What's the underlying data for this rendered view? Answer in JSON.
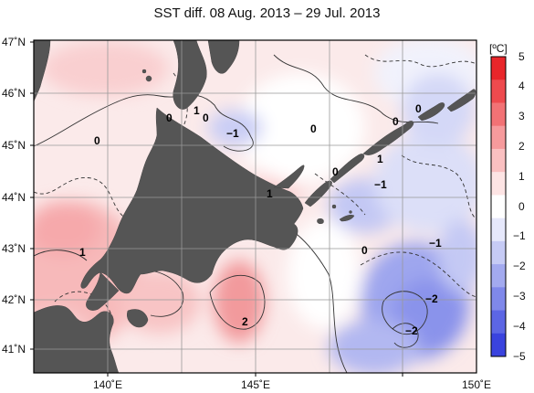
{
  "title": "SST diff. 08 Aug. 2013 – 29 Jul. 2013",
  "lat_labels": [
    "47˚N",
    "46˚N",
    "45˚N",
    "44˚N",
    "43˚N",
    "42˚N",
    "41˚N"
  ],
  "lon_labels": [
    "140˚E",
    "145˚E",
    "150˚E"
  ],
  "colorbar": {
    "unit": "[ºC]",
    "ticks": [
      "5",
      "4",
      "3",
      "2",
      "1",
      "0",
      "−1",
      "−2",
      "−3",
      "−4",
      "−5"
    ],
    "colors": [
      "#e8262a",
      "#ee4a4e",
      "#f27275",
      "#f69a9c",
      "#fac0c1",
      "#fde4e4",
      "#ffffff",
      "#e6e8fb",
      "#c6cbf5",
      "#a3aaef",
      "#7f88ea",
      "#5c66e4",
      "#3a43de"
    ]
  },
  "contour_labels": [
    "0",
    "1",
    "0",
    "−1",
    "0",
    "0",
    "0",
    "0",
    "0",
    "1",
    "−1",
    "1",
    "−1",
    "0",
    "1",
    "−2",
    "−2",
    "2"
  ],
  "colors": {
    "land": "#555555",
    "frame": "#000000",
    "grid": "#999999"
  },
  "chart_data": {
    "type": "heatmap",
    "title": "SST diff. 08 Aug. 2013 – 29 Jul. 2013",
    "x_range": [
      138,
      150
    ],
    "y_range": [
      40.5,
      47
    ],
    "color_range": [
      -5,
      5
    ],
    "colorbar_unit": "[ºC]",
    "grid": true,
    "legend": "right"
  }
}
